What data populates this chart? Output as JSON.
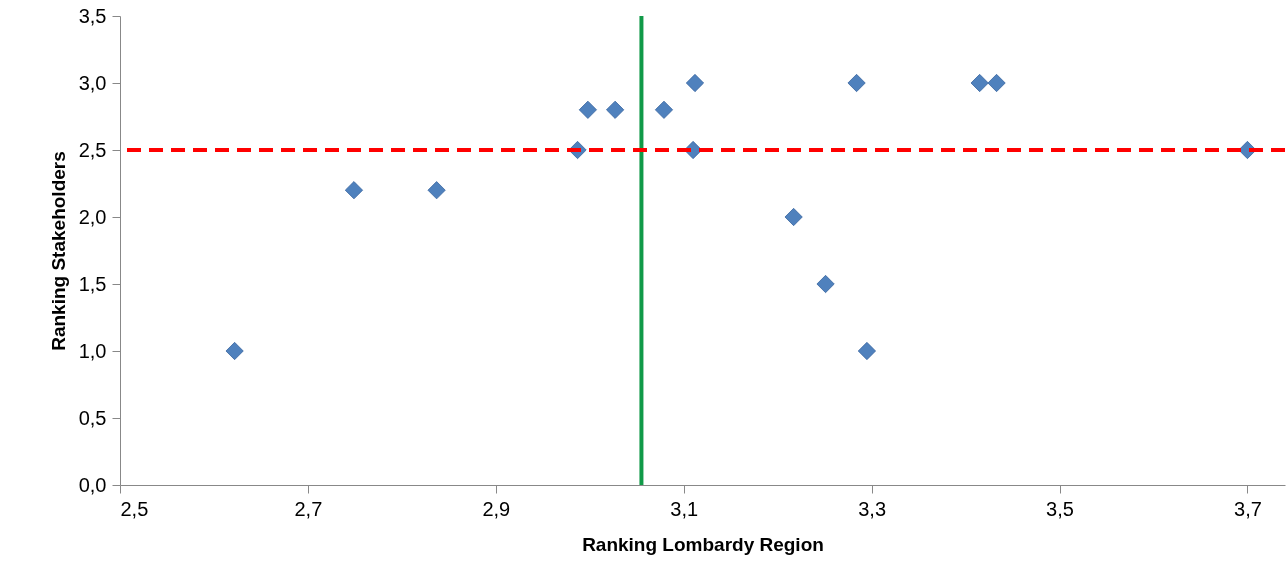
{
  "chart_data": {
    "type": "scatter",
    "xlabel": "Ranking Lombardy Region",
    "ylabel": "Ranking Stakeholders",
    "marker": "diamond",
    "grid": false,
    "x": [
      2.622,
      2.749,
      2.837,
      2.987,
      2.998,
      3.027,
      3.079,
      3.112,
      3.11,
      3.217,
      3.251,
      3.284,
      3.295,
      3.415,
      3.433,
      3.7
    ],
    "series": [
      {
        "color": "#4f81bd",
        "values": [
          1.0,
          2.2,
          2.2,
          2.5,
          2.8,
          2.8,
          2.8,
          3.0,
          2.5,
          2.0,
          1.5,
          3.0,
          1.0,
          3.0,
          3.0,
          2.5
        ]
      }
    ],
    "xlim": [
      2.5,
      3.74
    ],
    "xticks": [
      {
        "value": 2.5,
        "label": "2,5"
      },
      {
        "value": 2.7,
        "label": "2,7"
      },
      {
        "value": 2.9,
        "label": "2,9"
      },
      {
        "value": 3.1,
        "label": "3,1"
      },
      {
        "value": 3.3,
        "label": "3,3"
      },
      {
        "value": 3.5,
        "label": "3,5"
      },
      {
        "value": 3.7,
        "label": "3,7"
      }
    ],
    "ylim": [
      0,
      3.5
    ],
    "yticks": [
      {
        "value": 0,
        "label": "0,0"
      },
      {
        "value": 0.5,
        "label": "0,5"
      },
      {
        "value": 1,
        "label": "1,0"
      },
      {
        "value": 1.5,
        "label": "1,5"
      },
      {
        "value": 2,
        "label": "2,0"
      },
      {
        "value": 2.5,
        "label": "2,5"
      },
      {
        "value": 3,
        "label": "3,0"
      },
      {
        "value": 3.5,
        "label": "3,5"
      }
    ],
    "ref_lines": [
      {
        "axis": "x",
        "value": 3.055,
        "color": "#119a48",
        "line_style": "solid"
      },
      {
        "axis": "y",
        "value": 2.5,
        "color": "#ff0000",
        "line_style": "dashed"
      }
    ]
  }
}
